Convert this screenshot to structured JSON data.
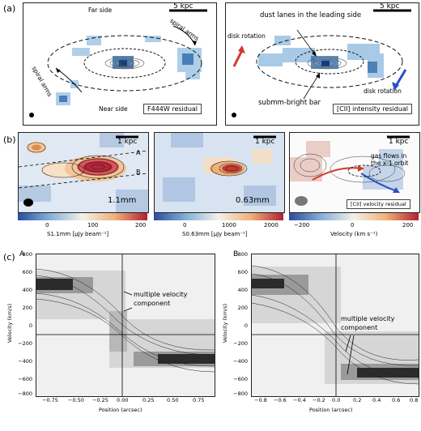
{
  "row_a": {
    "label": "(a)",
    "left": {
      "scalebar": "5 kpc",
      "far_side": "Far side",
      "near_side": "Near side",
      "spiral_arms_top": "spiral arms",
      "spiral_arms_left": "spiral arms",
      "box": "F444W residual"
    },
    "right": {
      "scalebar": "5 kpc",
      "dust_lanes": "dust lanes in the leading side",
      "disk_rotation_left": "disk rotation",
      "disk_rotation_right": "disk rotation",
      "bar": "submm-bright bar",
      "box": "[CII] intensity residual"
    }
  },
  "row_b": {
    "label": "(b)",
    "p1": {
      "scalebar": "1 kpc",
      "tag": "1.1mm",
      "line_a": "A",
      "line_b": "B",
      "cbar_ticks": [
        "0",
        "100",
        "200"
      ],
      "cbar_label": "S1.1mm [μJy beam⁻¹]"
    },
    "p2": {
      "scalebar": "1 kpc",
      "tag": "0.63mm",
      "cbar_ticks": [
        "0",
        "1000",
        "2000"
      ],
      "cbar_label": "S0.63mm [μJy beam⁻¹]"
    },
    "p3": {
      "scalebar": "1 kpc",
      "gas": "gas flows in the x-1 orbit",
      "box": "[CII] velocity residual",
      "cbar_ticks": [
        "−200",
        "0",
        "200"
      ],
      "cbar_label": "Velocity (km s⁻¹)"
    }
  },
  "row_c": {
    "label": "(c)",
    "left": {
      "tag": "A",
      "annotation": "multiple velocity component",
      "ylabel": "Velocity (km/s)",
      "xlabel": "Position (arcsec)",
      "yticks": [
        "800",
        "600",
        "400",
        "200",
        "0",
        "−200",
        "−400",
        "−600",
        "−800"
      ],
      "xticks": [
        "−0.75",
        "−0.50",
        "−0.25",
        "0.00",
        "0.25",
        "0.50",
        "0.75"
      ]
    },
    "right": {
      "tag": "B",
      "annotation": "multiple velocity component",
      "ylabel": "Velocity (km/s)",
      "xlabel": "Position (arcsec)",
      "yticks": [
        "800",
        "600",
        "400",
        "200",
        "0",
        "−200",
        "−400",
        "−600",
        "−800"
      ],
      "xticks": [
        "−0.8",
        "−0.6",
        "−0.4",
        "−0.2",
        "0.0",
        "0.2",
        "0.4",
        "0.6",
        "0.8"
      ]
    }
  },
  "colors": {
    "blue": "#3a78b8",
    "red": "#d03a2a",
    "dark": "#222222"
  }
}
